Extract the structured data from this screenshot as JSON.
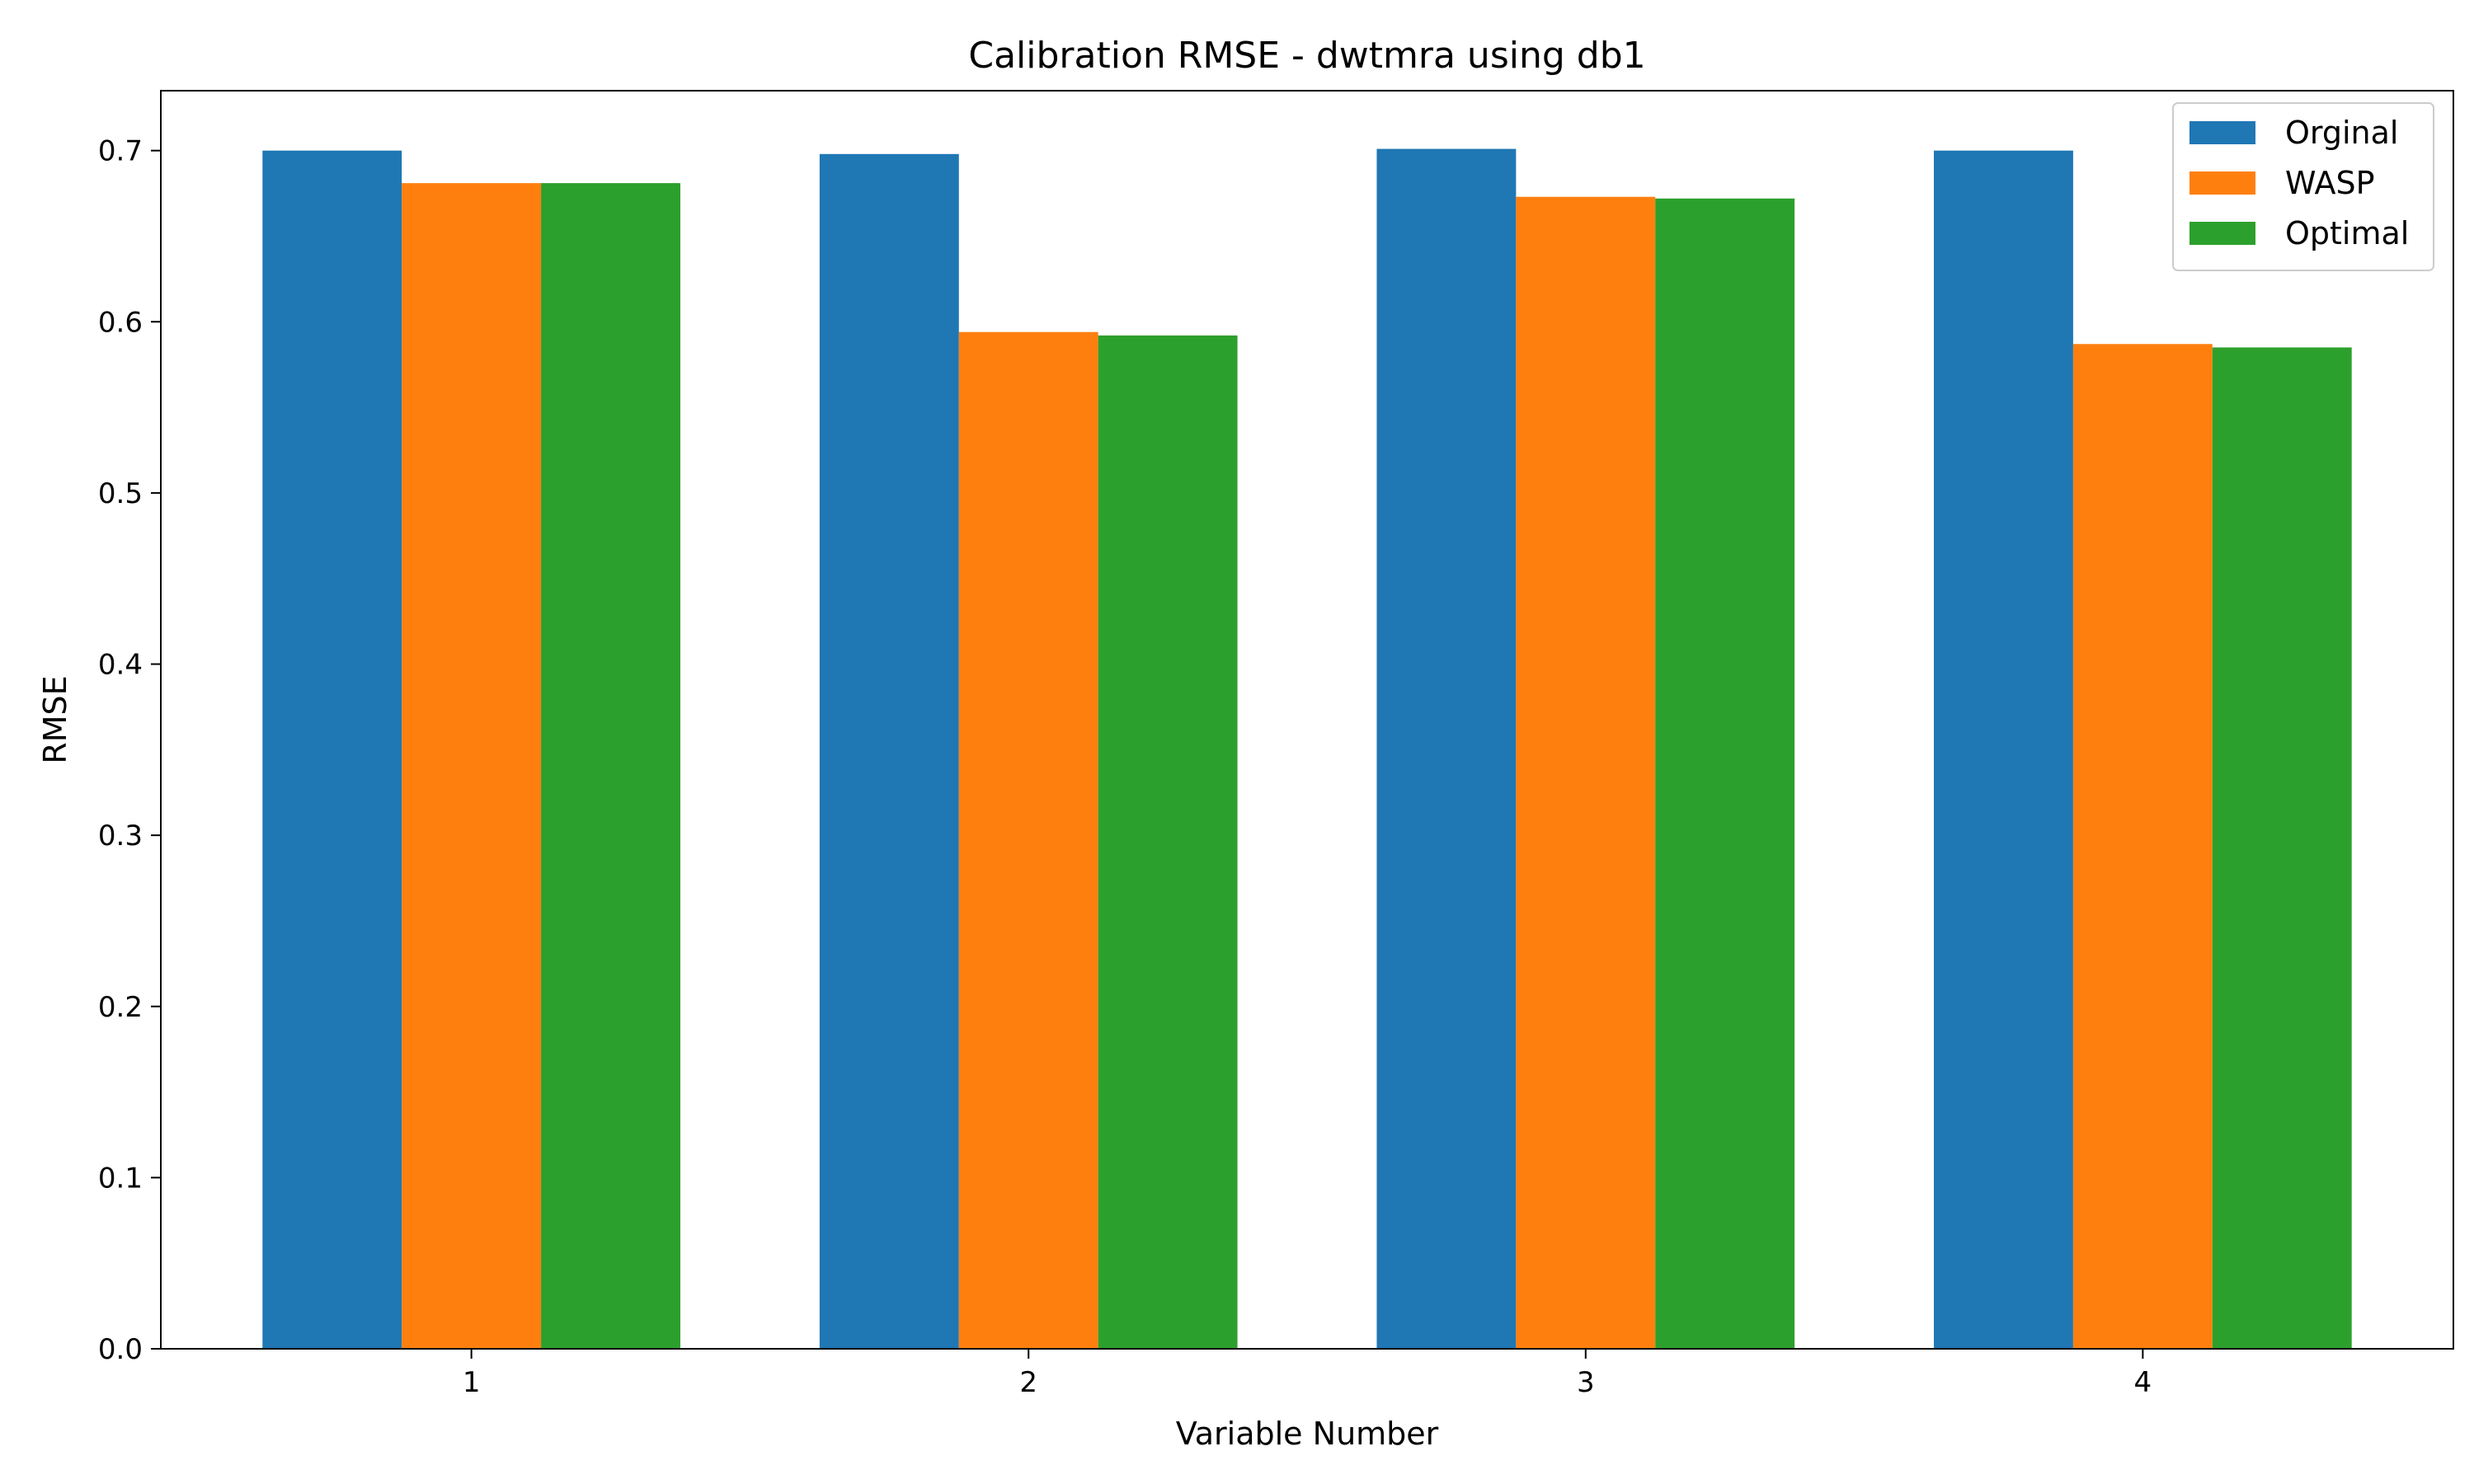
{
  "chart_data": {
    "type": "bar",
    "title": "Calibration RMSE - dwtmra using db1",
    "xlabel": "Variable Number",
    "ylabel": "RMSE",
    "categories": [
      "1",
      "2",
      "3",
      "4"
    ],
    "series": [
      {
        "name": "Orginal",
        "color": "#1f77b4",
        "values": [
          0.7,
          0.698,
          0.701,
          0.7
        ]
      },
      {
        "name": "WASP",
        "color": "#ff7f0e",
        "values": [
          0.681,
          0.594,
          0.673,
          0.587
        ]
      },
      {
        "name": "Optimal",
        "color": "#2ca02c",
        "values": [
          0.681,
          0.592,
          0.672,
          0.585
        ]
      }
    ],
    "ylim": [
      0,
      0.735
    ],
    "yticks": [
      "0.0",
      "0.1",
      "0.2",
      "0.3",
      "0.4",
      "0.5",
      "0.6",
      "0.7"
    ],
    "grid": false,
    "legend_position": "top-right"
  }
}
